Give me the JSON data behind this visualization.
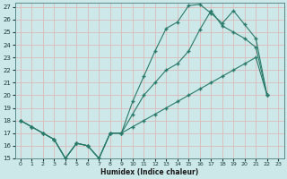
{
  "xlabel": "Humidex (Indice chaleur)",
  "bg_color": "#cce8e8",
  "grid_color": "#aacccc",
  "line_color": "#2a7a6a",
  "xlim": [
    -0.5,
    23.5
  ],
  "ylim": [
    15,
    27.3
  ],
  "yticks": [
    15,
    16,
    17,
    18,
    19,
    20,
    21,
    22,
    23,
    24,
    25,
    26,
    27
  ],
  "xticks": [
    0,
    1,
    2,
    3,
    4,
    5,
    6,
    7,
    8,
    9,
    10,
    11,
    12,
    13,
    14,
    15,
    16,
    17,
    18,
    19,
    20,
    21,
    22,
    23
  ],
  "line_zigzag_x": [
    0,
    1,
    2,
    3,
    4,
    5,
    6,
    7,
    8,
    9,
    10,
    11,
    12,
    13,
    14,
    15,
    16,
    17,
    18,
    19,
    20,
    21,
    22
  ],
  "line_zigzag_y": [
    18.0,
    17.5,
    17.0,
    16.5,
    15.0,
    16.2,
    16.0,
    15.0,
    17.0,
    17.0,
    17.5,
    18.0,
    18.5,
    19.0,
    19.5,
    20.0,
    20.5,
    21.0,
    21.5,
    22.0,
    22.5,
    23.0,
    20.0
  ],
  "line_upper_x": [
    0,
    1,
    2,
    3,
    4,
    5,
    6,
    7,
    8,
    9,
    10,
    11,
    12,
    13,
    14,
    15,
    16,
    17,
    18,
    19,
    20,
    21,
    22
  ],
  "line_upper_y": [
    18.0,
    17.5,
    17.0,
    16.5,
    15.0,
    16.2,
    16.0,
    15.0,
    17.0,
    17.0,
    19.5,
    21.5,
    23.5,
    25.3,
    25.8,
    27.1,
    27.2,
    26.5,
    25.7,
    26.7,
    25.6,
    24.5,
    20.0
  ],
  "line_mid_x": [
    0,
    1,
    2,
    3,
    4,
    5,
    6,
    7,
    8,
    9,
    10,
    11,
    12,
    13,
    14,
    15,
    16,
    17,
    18,
    19,
    20,
    21,
    22
  ],
  "line_mid_y": [
    18.0,
    17.5,
    17.0,
    16.5,
    15.0,
    16.2,
    16.0,
    15.0,
    17.0,
    17.0,
    18.5,
    20.0,
    21.0,
    22.0,
    22.5,
    23.5,
    25.2,
    26.7,
    25.5,
    25.0,
    24.5,
    23.8,
    20.0
  ]
}
